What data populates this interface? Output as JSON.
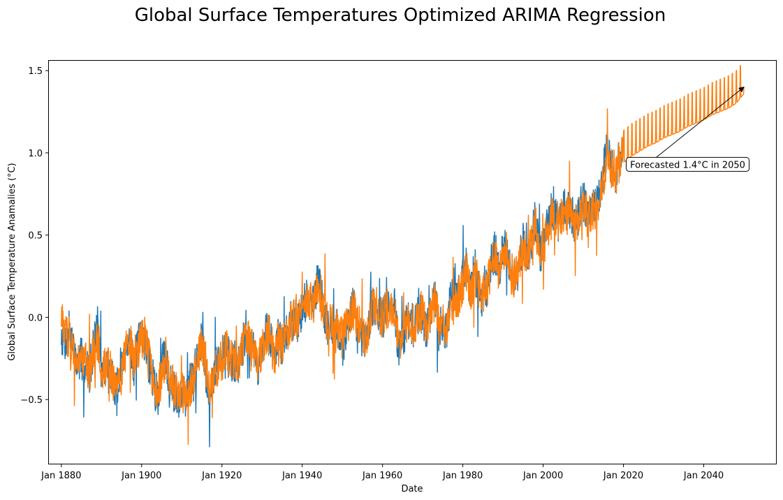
{
  "chart_data": {
    "type": "line",
    "title": "Global Surface Temperatures Optimized ARIMA Regression",
    "xlabel": "Date",
    "ylabel": "Global Surface Temperature Anamalies (°C)",
    "x_ticks": [
      "Jan 1880",
      "Jan 1900",
      "Jan 1920",
      "Jan 1940",
      "Jan 1960",
      "Jan 1980",
      "Jan 2000",
      "Jan 2020",
      "Jan 2040"
    ],
    "y_ticks": [
      "−0.5",
      "0.0",
      "0.5",
      "1.0",
      "1.5"
    ],
    "xlim": [
      1876.9,
      2058.0
    ],
    "ylim": [
      -0.89,
      1.56
    ],
    "grid": false,
    "annotation": {
      "text": "Forecasted 1.4°C in 2050",
      "target": {
        "x": 2050,
        "y": 1.4
      },
      "label_at": {
        "x": 2036,
        "y": 0.93
      }
    },
    "series": [
      {
        "color": "#1f77b4",
        "points": [
          [
            1880,
            -0.1
          ],
          [
            1881,
            -0.15
          ],
          [
            1882,
            -0.05
          ],
          [
            1883,
            -0.22
          ],
          [
            1884,
            -0.28
          ],
          [
            1885,
            -0.25
          ],
          [
            1886,
            -0.3
          ],
          [
            1887,
            -0.33
          ],
          [
            1888,
            -0.18
          ],
          [
            1889,
            -0.05
          ],
          [
            1890,
            -0.38
          ],
          [
            1891,
            -0.3
          ],
          [
            1892,
            -0.35
          ],
          [
            1893,
            -0.4
          ],
          [
            1894,
            -0.42
          ],
          [
            1895,
            -0.33
          ],
          [
            1896,
            -0.15
          ],
          [
            1897,
            -0.12
          ],
          [
            1898,
            -0.3
          ],
          [
            1899,
            -0.18
          ],
          [
            1900,
            -0.1
          ],
          [
            1901,
            -0.15
          ],
          [
            1902,
            -0.3
          ],
          [
            1903,
            -0.4
          ],
          [
            1904,
            -0.5
          ],
          [
            1905,
            -0.3
          ],
          [
            1906,
            -0.22
          ],
          [
            1907,
            -0.4
          ],
          [
            1908,
            -0.45
          ],
          [
            1909,
            -0.5
          ],
          [
            1910,
            -0.45
          ],
          [
            1911,
            -0.48
          ],
          [
            1912,
            -0.4
          ],
          [
            1913,
            -0.38
          ],
          [
            1914,
            -0.2
          ],
          [
            1915,
            -0.12
          ],
          [
            1916,
            -0.35
          ],
          [
            1917,
            -0.48
          ],
          [
            1918,
            -0.35
          ],
          [
            1919,
            -0.28
          ],
          [
            1920,
            -0.25
          ],
          [
            1921,
            -0.18
          ],
          [
            1922,
            -0.28
          ],
          [
            1923,
            -0.26
          ],
          [
            1924,
            -0.3
          ],
          [
            1925,
            -0.2
          ],
          [
            1926,
            -0.08
          ],
          [
            1927,
            -0.2
          ],
          [
            1928,
            -0.2
          ],
          [
            1929,
            -0.36
          ],
          [
            1930,
            -0.15
          ],
          [
            1931,
            -0.08
          ],
          [
            1932,
            -0.12
          ],
          [
            1933,
            -0.28
          ],
          [
            1934,
            -0.12
          ],
          [
            1935,
            -0.18
          ],
          [
            1936,
            -0.12
          ],
          [
            1937,
            -0.02
          ],
          [
            1938,
            -0.02
          ],
          [
            1939,
            -0.02
          ],
          [
            1940,
            0.05
          ],
          [
            1941,
            0.12
          ],
          [
            1942,
            0.08
          ],
          [
            1943,
            0.1
          ],
          [
            1944,
            0.22
          ],
          [
            1945,
            0.1
          ],
          [
            1946,
            -0.05
          ],
          [
            1947,
            -0.05
          ],
          [
            1948,
            -0.08
          ],
          [
            1949,
            -0.08
          ],
          [
            1950,
            -0.18
          ],
          [
            1951,
            -0.05
          ],
          [
            1952,
            0.02
          ],
          [
            1953,
            0.08
          ],
          [
            1954,
            -0.12
          ],
          [
            1955,
            -0.15
          ],
          [
            1956,
            -0.18
          ],
          [
            1957,
            0.05
          ],
          [
            1958,
            0.08
          ],
          [
            1959,
            0.04
          ],
          [
            1960,
            -0.02
          ],
          [
            1961,
            0.06
          ],
          [
            1962,
            0.04
          ],
          [
            1963,
            0.06
          ],
          [
            1964,
            -0.2
          ],
          [
            1965,
            -0.12
          ],
          [
            1966,
            -0.05
          ],
          [
            1967,
            -0.02
          ],
          [
            1968,
            -0.08
          ],
          [
            1969,
            0.05
          ],
          [
            1970,
            0.02
          ],
          [
            1971,
            -0.08
          ],
          [
            1972,
            0.01
          ],
          [
            1973,
            0.15
          ],
          [
            1974,
            -0.08
          ],
          [
            1975,
            -0.02
          ],
          [
            1976,
            -0.12
          ],
          [
            1977,
            0.15
          ],
          [
            1978,
            0.06
          ],
          [
            1979,
            0.14
          ],
          [
            1980,
            0.26
          ],
          [
            1981,
            0.32
          ],
          [
            1982,
            0.14
          ],
          [
            1983,
            0.31
          ],
          [
            1984,
            0.16
          ],
          [
            1985,
            0.12
          ],
          [
            1986,
            0.18
          ],
          [
            1987,
            0.33
          ],
          [
            1988,
            0.4
          ],
          [
            1989,
            0.28
          ],
          [
            1990,
            0.45
          ],
          [
            1991,
            0.41
          ],
          [
            1992,
            0.23
          ],
          [
            1993,
            0.24
          ],
          [
            1994,
            0.31
          ],
          [
            1995,
            0.45
          ],
          [
            1996,
            0.35
          ],
          [
            1997,
            0.46
          ],
          [
            1998,
            0.61
          ],
          [
            1999,
            0.4
          ],
          [
            2000,
            0.4
          ],
          [
            2001,
            0.54
          ],
          [
            2002,
            0.63
          ],
          [
            2003,
            0.62
          ],
          [
            2004,
            0.54
          ],
          [
            2005,
            0.68
          ],
          [
            2006,
            0.64
          ],
          [
            2007,
            0.66
          ],
          [
            2008,
            0.54
          ],
          [
            2009,
            0.65
          ],
          [
            2010,
            0.72
          ],
          [
            2011,
            0.61
          ],
          [
            2012,
            0.64
          ],
          [
            2013,
            0.68
          ],
          [
            2014,
            0.75
          ],
          [
            2015,
            0.9
          ],
          [
            2016,
            1.01
          ],
          [
            2017,
            0.92
          ],
          [
            2018,
            0.85
          ],
          [
            2019,
            0.98
          ],
          [
            2020,
            1.02
          ]
        ]
      },
      {
        "color": "#ff7f0e",
        "points": [
          [
            1880,
            0.0
          ],
          [
            1881,
            -0.1
          ],
          [
            1882,
            -0.12
          ],
          [
            1883,
            -0.18
          ],
          [
            1884,
            -0.28
          ],
          [
            1885,
            -0.3
          ],
          [
            1886,
            -0.28
          ],
          [
            1887,
            -0.34
          ],
          [
            1888,
            -0.22
          ],
          [
            1889,
            -0.12
          ],
          [
            1890,
            -0.3
          ],
          [
            1891,
            -0.3
          ],
          [
            1892,
            -0.32
          ],
          [
            1893,
            -0.38
          ],
          [
            1894,
            -0.4
          ],
          [
            1895,
            -0.34
          ],
          [
            1896,
            -0.2
          ],
          [
            1897,
            -0.14
          ],
          [
            1898,
            -0.26
          ],
          [
            1899,
            -0.2
          ],
          [
            1900,
            -0.12
          ],
          [
            1901,
            -0.12
          ],
          [
            1902,
            -0.26
          ],
          [
            1903,
            -0.36
          ],
          [
            1904,
            -0.46
          ],
          [
            1905,
            -0.34
          ],
          [
            1906,
            -0.24
          ],
          [
            1907,
            -0.36
          ],
          [
            1908,
            -0.42
          ],
          [
            1909,
            -0.47
          ],
          [
            1910,
            -0.45
          ],
          [
            1911,
            -0.46
          ],
          [
            1912,
            -0.42
          ],
          [
            1913,
            -0.38
          ],
          [
            1914,
            -0.24
          ],
          [
            1915,
            -0.14
          ],
          [
            1916,
            -0.3
          ],
          [
            1917,
            -0.44
          ],
          [
            1918,
            -0.38
          ],
          [
            1919,
            -0.28
          ],
          [
            1920,
            -0.26
          ],
          [
            1921,
            -0.2
          ],
          [
            1922,
            -0.26
          ],
          [
            1923,
            -0.26
          ],
          [
            1924,
            -0.28
          ],
          [
            1925,
            -0.22
          ],
          [
            1926,
            -0.1
          ],
          [
            1927,
            -0.18
          ],
          [
            1928,
            -0.2
          ],
          [
            1929,
            -0.32
          ],
          [
            1930,
            -0.18
          ],
          [
            1931,
            -0.1
          ],
          [
            1932,
            -0.12
          ],
          [
            1933,
            -0.24
          ],
          [
            1934,
            -0.14
          ],
          [
            1935,
            -0.16
          ],
          [
            1936,
            -0.12
          ],
          [
            1937,
            -0.04
          ],
          [
            1938,
            -0.02
          ],
          [
            1939,
            -0.01
          ],
          [
            1940,
            0.04
          ],
          [
            1941,
            0.1
          ],
          [
            1942,
            0.08
          ],
          [
            1943,
            0.1
          ],
          [
            1944,
            0.18
          ],
          [
            1945,
            0.12
          ],
          [
            1946,
            -0.02
          ],
          [
            1947,
            -0.04
          ],
          [
            1948,
            -0.06
          ],
          [
            1949,
            -0.08
          ],
          [
            1950,
            -0.14
          ],
          [
            1951,
            -0.06
          ],
          [
            1952,
            0.01
          ],
          [
            1953,
            0.06
          ],
          [
            1954,
            -0.08
          ],
          [
            1955,
            -0.12
          ],
          [
            1956,
            -0.16
          ],
          [
            1957,
            0.02
          ],
          [
            1958,
            0.07
          ],
          [
            1959,
            0.04
          ],
          [
            1960,
            0.0
          ],
          [
            1961,
            0.05
          ],
          [
            1962,
            0.04
          ],
          [
            1963,
            0.06
          ],
          [
            1964,
            -0.14
          ],
          [
            1965,
            -0.12
          ],
          [
            1966,
            -0.06
          ],
          [
            1967,
            -0.02
          ],
          [
            1968,
            -0.06
          ],
          [
            1969,
            0.04
          ],
          [
            1970,
            0.02
          ],
          [
            1971,
            -0.06
          ],
          [
            1972,
            0.0
          ],
          [
            1973,
            0.12
          ],
          [
            1974,
            -0.04
          ],
          [
            1975,
            -0.02
          ],
          [
            1976,
            -0.1
          ],
          [
            1977,
            0.12
          ],
          [
            1978,
            0.06
          ],
          [
            1979,
            0.12
          ],
          [
            1980,
            0.22
          ],
          [
            1981,
            0.28
          ],
          [
            1982,
            0.16
          ],
          [
            1983,
            0.28
          ],
          [
            1984,
            0.18
          ],
          [
            1985,
            0.14
          ],
          [
            1986,
            0.18
          ],
          [
            1987,
            0.3
          ],
          [
            1988,
            0.37
          ],
          [
            1989,
            0.29
          ],
          [
            1990,
            0.41
          ],
          [
            1991,
            0.4
          ],
          [
            1992,
            0.26
          ],
          [
            1993,
            0.25
          ],
          [
            1994,
            0.3
          ],
          [
            1995,
            0.42
          ],
          [
            1996,
            0.36
          ],
          [
            1997,
            0.44
          ],
          [
            1998,
            0.56
          ],
          [
            1999,
            0.43
          ],
          [
            2000,
            0.41
          ],
          [
            2001,
            0.51
          ],
          [
            2002,
            0.6
          ],
          [
            2003,
            0.6
          ],
          [
            2004,
            0.55
          ],
          [
            2005,
            0.65
          ],
          [
            2006,
            0.63
          ],
          [
            2007,
            0.65
          ],
          [
            2008,
            0.56
          ],
          [
            2009,
            0.63
          ],
          [
            2010,
            0.7
          ],
          [
            2011,
            0.62
          ],
          [
            2012,
            0.64
          ],
          [
            2013,
            0.67
          ],
          [
            2014,
            0.73
          ],
          [
            2015,
            0.86
          ],
          [
            2016,
            0.96
          ],
          [
            2017,
            0.9
          ],
          [
            2018,
            0.86
          ],
          [
            2019,
            0.95
          ],
          [
            2020,
            0.98
          ],
          [
            2022,
            1.02
          ],
          [
            2024,
            1.05
          ],
          [
            2026,
            1.08
          ],
          [
            2028,
            1.1
          ],
          [
            2030,
            1.13
          ],
          [
            2032,
            1.15
          ],
          [
            2034,
            1.17
          ],
          [
            2036,
            1.2
          ],
          [
            2038,
            1.22
          ],
          [
            2040,
            1.24
          ],
          [
            2042,
            1.27
          ],
          [
            2044,
            1.29
          ],
          [
            2046,
            1.31
          ],
          [
            2048,
            1.34
          ],
          [
            2050,
            1.4
          ]
        ]
      }
    ]
  }
}
